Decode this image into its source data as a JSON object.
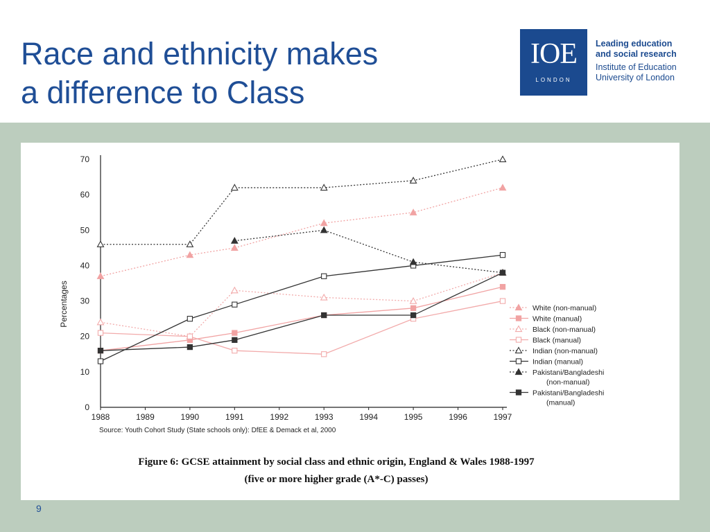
{
  "slide": {
    "title_lines": [
      "Race and ethnicity makes",
      "a difference to Class"
    ],
    "page_number": "9"
  },
  "logo": {
    "mark": "IOE",
    "sub": "LONDON",
    "lines": [
      "Leading education",
      "and social research",
      "Institute of Education",
      "University of London"
    ],
    "color": "#1b4a8f"
  },
  "colors": {
    "title": "#1f4e96",
    "band": "#bccdbe",
    "pink_filled": "#f1a3a3",
    "pink_hollow": "#f2aaaa",
    "dark": "#333333"
  },
  "chart_data": {
    "type": "line",
    "caption_lines": [
      "Figure 6: GCSE attainment by social class and ethnic origin, England & Wales 1988-1997",
      "(five or more higher grade (A*-C) passes)"
    ],
    "source": "Source: Youth Cohort Study (State schools only): DfEE & Demack et al, 2000",
    "ylabel": "Percentages",
    "xlabel": "",
    "x_ticks": [
      "1988",
      "1989",
      "1990",
      "1991",
      "1992",
      "1993",
      "1994",
      "1995",
      "1996",
      "1997"
    ],
    "y_ticks": [
      "0",
      "10",
      "20",
      "30",
      "40",
      "50",
      "60",
      "70"
    ],
    "xlim": [
      1988,
      1997
    ],
    "ylim": [
      0,
      70
    ],
    "grid": false,
    "legend_position": "right",
    "series": [
      {
        "name": "White (non-manual)",
        "x": [
          1988,
          1990,
          1991,
          1993,
          1995,
          1997
        ],
        "values": [
          37,
          43,
          45,
          52,
          55,
          62
        ],
        "marker": "triangle",
        "filled": true,
        "dash": "dotted",
        "color": "#f1a3a3"
      },
      {
        "name": "White (manual)",
        "x": [
          1988,
          1990,
          1991,
          1993,
          1995,
          1997
        ],
        "values": [
          16,
          19,
          21,
          26,
          28,
          34
        ],
        "marker": "square",
        "filled": true,
        "dash": "solid",
        "color": "#f1a3a3"
      },
      {
        "name": "Black (non-manual)",
        "x": [
          1988,
          1990,
          1991,
          1993,
          1995,
          1997
        ],
        "values": [
          24,
          20,
          33,
          31,
          30,
          38
        ],
        "marker": "triangle",
        "filled": false,
        "dash": "dotted",
        "color": "#f2aaaa"
      },
      {
        "name": "Black (manual)",
        "x": [
          1988,
          1990,
          1991,
          1993,
          1995,
          1997
        ],
        "values": [
          21,
          20,
          16,
          15,
          25,
          30
        ],
        "marker": "square",
        "filled": false,
        "dash": "solid",
        "color": "#f2aaaa"
      },
      {
        "name": "Indian (non-manual)",
        "x": [
          1988,
          1990,
          1991,
          1993,
          1995,
          1997
        ],
        "values": [
          46,
          46,
          62,
          62,
          64,
          70
        ],
        "marker": "triangle",
        "filled": false,
        "dash": "dotted",
        "color": "#333333"
      },
      {
        "name": "Indian (manual)",
        "x": [
          1988,
          1990,
          1991,
          1993,
          1995,
          1997
        ],
        "values": [
          13,
          25,
          29,
          37,
          40,
          43
        ],
        "marker": "square",
        "filled": false,
        "dash": "solid",
        "color": "#333333"
      },
      {
        "name": "Pakistani/Bangladeshi (non-manual)",
        "x": [
          1991,
          1993,
          1995,
          1997
        ],
        "values": [
          47,
          50,
          41,
          38
        ],
        "marker": "triangle",
        "filled": true,
        "dash": "dotted",
        "color": "#333333"
      },
      {
        "name": "Pakistani/Bangladeshi (manual)",
        "x": [
          1988,
          1990,
          1991,
          1993,
          1995,
          1997
        ],
        "values": [
          16,
          17,
          19,
          26,
          26,
          38
        ],
        "marker": "square",
        "filled": true,
        "dash": "solid",
        "color": "#333333"
      }
    ],
    "legend_lines": [
      [
        "White (non-manual)"
      ],
      [
        "White (manual)"
      ],
      [
        "Black (non-manual)"
      ],
      [
        "Black (manual)"
      ],
      [
        "Indian (non-manual)"
      ],
      [
        "Indian (manual)"
      ],
      [
        "Pakistani/Bangladeshi",
        "(non-manual)"
      ],
      [
        "Pakistani/Bangladeshi",
        "(manual)"
      ]
    ]
  }
}
